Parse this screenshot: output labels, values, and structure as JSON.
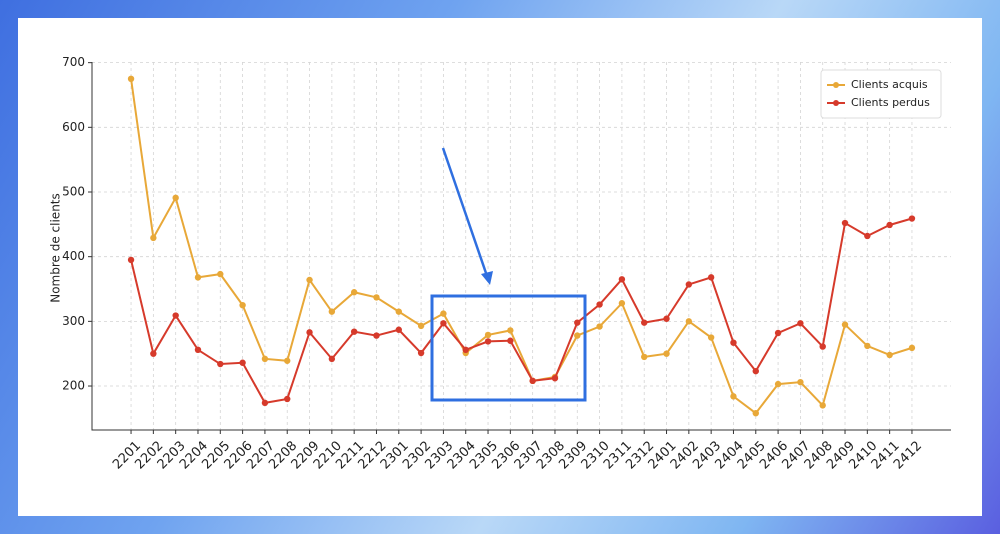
{
  "chart_data": {
    "type": "line",
    "y_label": "Nombre de clients",
    "categories": [
      "2201",
      "2202",
      "2203",
      "2204",
      "2205",
      "2206",
      "2207",
      "2208",
      "2209",
      "2210",
      "2211",
      "2212",
      "2301",
      "2302",
      "2303",
      "2304",
      "2305",
      "2306",
      "2307",
      "2308",
      "2309",
      "2310",
      "2311",
      "2312",
      "2401",
      "2402",
      "2403",
      "2404",
      "2405",
      "2406",
      "2407",
      "2408",
      "2409",
      "2410",
      "2411",
      "2412"
    ],
    "series": [
      {
        "name": "Clients acquis",
        "color": "#e8a838",
        "values": [
          675,
          429,
          491,
          368,
          373,
          325,
          242,
          239,
          364,
          315,
          345,
          337,
          315,
          293,
          312,
          251,
          279,
          286,
          208,
          214,
          278,
          292,
          328,
          245,
          250,
          300,
          275,
          184,
          158,
          203,
          206,
          170,
          295,
          262,
          248,
          259
        ]
      },
      {
        "name": "Clients perdus",
        "color": "#d63a2b",
        "values": [
          395,
          250,
          309,
          256,
          234,
          236,
          174,
          180,
          283,
          242,
          284,
          278,
          287,
          251,
          297,
          256,
          269,
          270,
          208,
          212,
          298,
          326,
          365,
          298,
          304,
          357,
          368,
          267,
          223,
          282,
          297,
          261,
          452,
          432,
          449,
          459
        ]
      }
    ],
    "ylim": [
      132,
      701
    ],
    "yticks": [
      200,
      300,
      400,
      500,
      600,
      700
    ],
    "grid": true,
    "legend": "upper-right"
  }
}
